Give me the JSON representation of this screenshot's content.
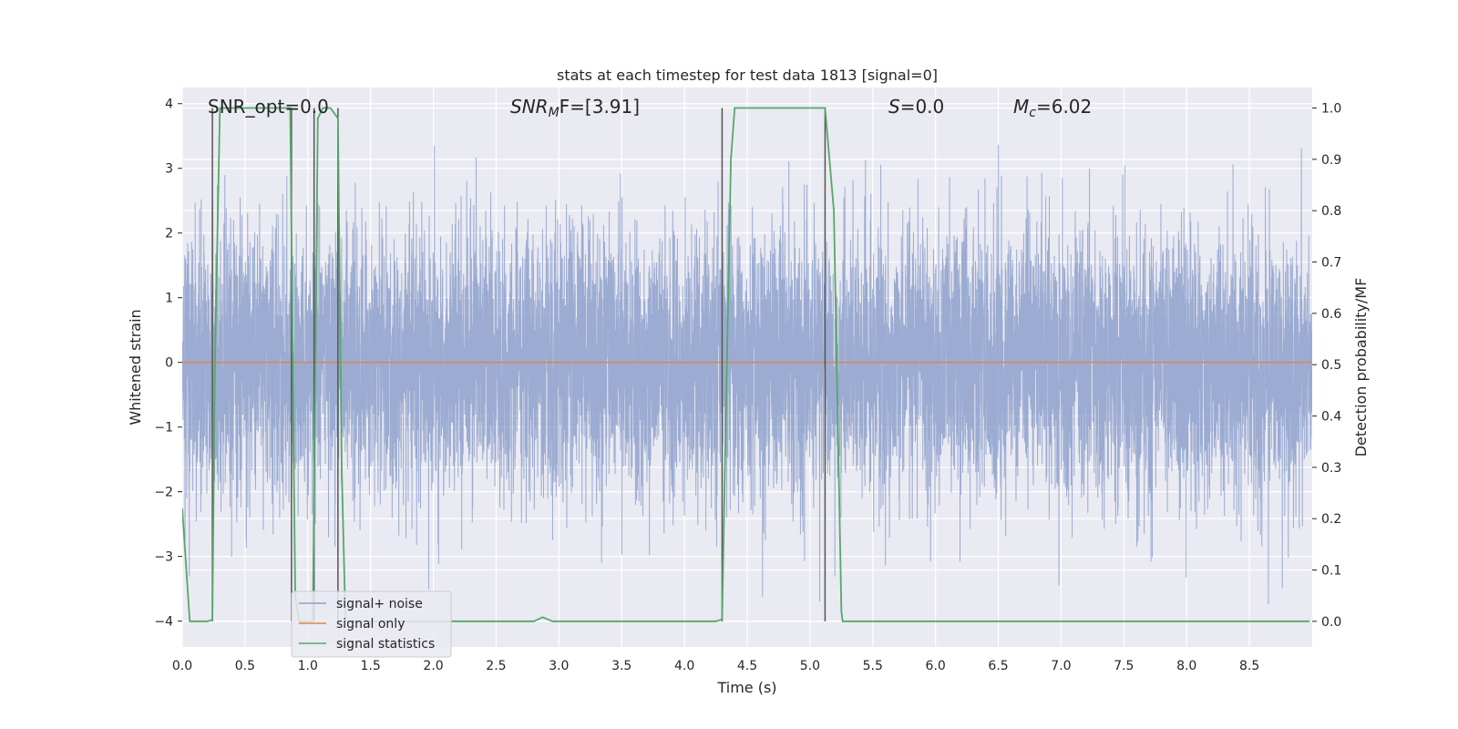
{
  "chart_data": {
    "type": "line",
    "title": "stats at each timestep for test data 1813 [signal=0]",
    "xlabel": "Time (s)",
    "ylabel_left": "Whitened strain",
    "ylabel_right": "Detection probability/MF",
    "xlim": [
      0.0,
      9.0
    ],
    "ylim_left": [
      -4.4,
      4.25
    ],
    "ylim_right": [
      -0.05,
      1.04
    ],
    "xticks": [
      0.0,
      0.5,
      1.0,
      1.5,
      2.0,
      2.5,
      3.0,
      3.5,
      4.0,
      4.5,
      5.0,
      5.5,
      6.0,
      6.5,
      7.0,
      7.5,
      8.0,
      8.5
    ],
    "xtick_labels": [
      "0.0",
      "0.5",
      "1.0",
      "1.5",
      "2.0",
      "2.5",
      "3.0",
      "3.5",
      "4.0",
      "4.5",
      "5.0",
      "5.5",
      "6.0",
      "6.5",
      "7.0",
      "7.5",
      "8.0",
      "8.5"
    ],
    "yticks_left": [
      -4,
      -3,
      -2,
      -1,
      0,
      1,
      2,
      3,
      4
    ],
    "ytick_labels_left": [
      "−4",
      "−3",
      "−2",
      "−1",
      "0",
      "1",
      "2",
      "3",
      "4"
    ],
    "yticks_right": [
      0.0,
      0.1,
      0.2,
      0.3,
      0.4,
      0.5,
      0.6,
      0.7,
      0.8,
      0.9,
      1.0
    ],
    "ytick_labels_right": [
      "0.0",
      "0.1",
      "0.2",
      "0.3",
      "0.4",
      "0.5",
      "0.6",
      "0.7",
      "0.8",
      "0.9",
      "1.0"
    ],
    "grid": true,
    "legend_placement": "lower-left",
    "annotations": {
      "snr_opt": "SNR_opt=0.0",
      "snr_mf_sym": "SNR",
      "snr_mf_sub": "M",
      "snr_mf_rest": "F=[3.91]",
      "s_sym": "S",
      "s_rest": "=0.0",
      "mc_sym": "M",
      "mc_sub": "c",
      "mc_rest": "=6.02"
    },
    "series": [
      {
        "name": "signal+ noise",
        "axis": "left",
        "color": "#8da0cb",
        "description_envelope": "noise amplitude ~ ±1.5 typical, peaks to ±4",
        "sample_rate_hz": 1000,
        "rng_seed": 1813
      },
      {
        "name": "signal only",
        "axis": "left",
        "color": "#dd8452",
        "constant_value": 0.0
      },
      {
        "name": "signal statistics",
        "axis": "right",
        "color": "#55a868",
        "x": [
          0.0,
          0.06,
          0.1,
          0.2,
          0.24,
          0.26,
          0.3,
          0.86,
          0.88,
          0.9,
          0.93,
          1.0,
          1.04,
          1.06,
          1.08,
          1.12,
          1.18,
          1.24,
          1.27,
          1.3,
          1.32,
          2.8,
          2.87,
          2.95,
          3.0,
          4.25,
          4.3,
          4.33,
          4.37,
          4.4,
          5.12,
          5.19,
          5.25,
          5.26,
          5.3,
          8.98
        ],
        "y": [
          0.22,
          0.0,
          0.0,
          0.0,
          0.003,
          0.5,
          1.0,
          1.0,
          0.5,
          0.05,
          0.0,
          0.0,
          0.0,
          0.5,
          0.98,
          1.0,
          1.0,
          0.98,
          0.3,
          0.0,
          0.0,
          0.0,
          0.008,
          0.0,
          0.0,
          0.0,
          0.004,
          0.4,
          0.9,
          1.0,
          1.0,
          0.8,
          0.02,
          0.0,
          0.0,
          0.0
        ]
      }
    ],
    "vertical_markers": {
      "color": "#555555",
      "x": [
        0.24,
        0.87,
        1.05,
        1.24,
        4.3,
        5.12
      ],
      "y_bottom": 0.0,
      "y_top": 1.0
    },
    "colors": {
      "background": "#eaeaf2",
      "grid": "#ffffff"
    }
  }
}
